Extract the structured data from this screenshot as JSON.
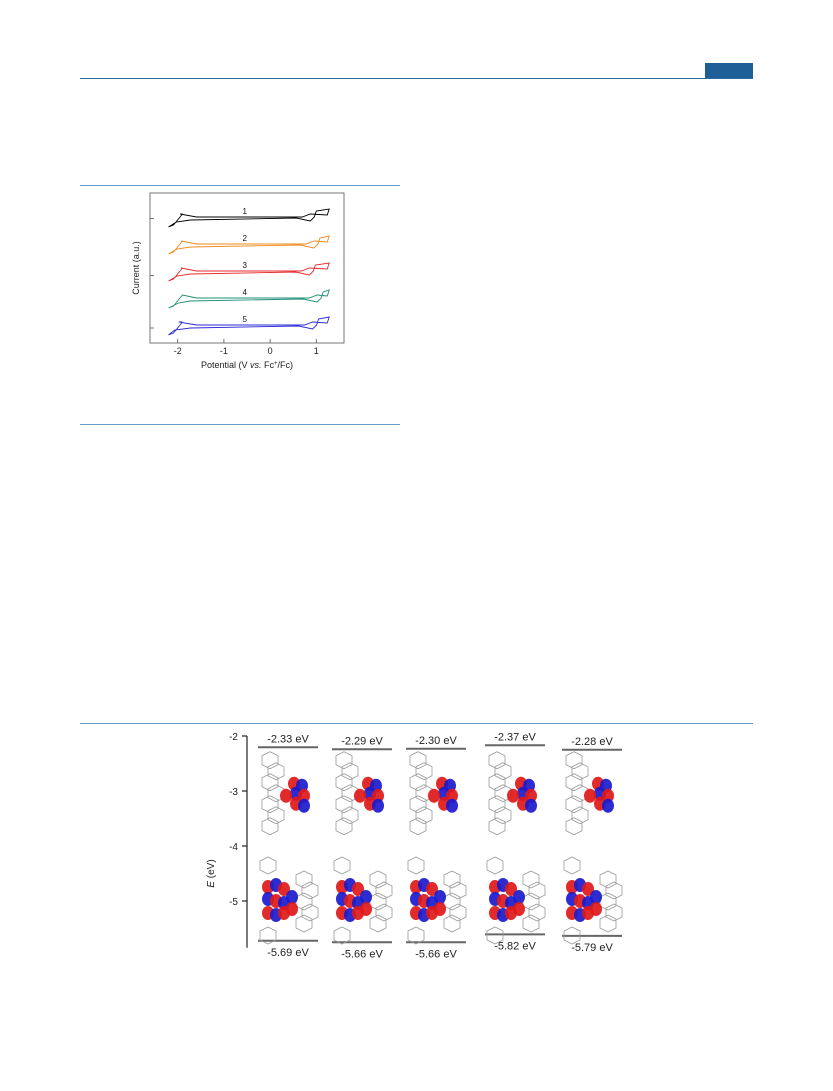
{
  "chart_data": [
    {
      "type": "line",
      "xlabel_parts": [
        "Potential (V ",
        "vs.",
        " Fc",
        "+",
        "/Fc)"
      ],
      "ylabel": "Current (a.u.)",
      "x_ticks": [
        "-2",
        "-1",
        "0",
        "1"
      ],
      "xlim": [
        -2.6,
        1.6
      ],
      "grid": false,
      "series": [
        {
          "name": "1",
          "color": "#000000",
          "offset": 4,
          "reduction": -2.12,
          "oxidation": 1.0
        },
        {
          "name": "2",
          "color": "#f08a1d",
          "offset": 3,
          "reduction": -2.1,
          "oxidation": 1.08
        },
        {
          "name": "3",
          "color": "#e8282a",
          "offset": 2,
          "reduction": -2.1,
          "oxidation": 0.98
        },
        {
          "name": "4",
          "color": "#1f8f76",
          "offset": 1,
          "reduction": -2.07,
          "oxidation": 1.15
        },
        {
          "name": "5",
          "color": "#2a2ad8",
          "offset": 0,
          "reduction": -2.15,
          "oxidation": 1.05
        }
      ]
    },
    {
      "type": "scatter",
      "ylabel_parts": [
        "E",
        " (eV)"
      ],
      "y_ticks": [
        "-2",
        "-3",
        "-4",
        "-5"
      ],
      "ylim": [
        -6,
        -2
      ],
      "lumo": {
        "values": [
          -2.33,
          -2.29,
          -2.3,
          -2.37,
          -2.28
        ],
        "labels": [
          "-2.33 eV",
          "-2.29 eV",
          "-2.30 eV",
          "-2.37 eV",
          "-2.28 eV"
        ]
      },
      "homo": {
        "values": [
          -5.69,
          -5.66,
          -5.66,
          -5.82,
          -5.79
        ],
        "labels": [
          "-5.69 eV",
          "-5.66 eV",
          "-5.66 eV",
          "-5.82 eV",
          "-5.79 eV"
        ]
      },
      "orbital_colors": {
        "positive": "#e01818",
        "negative": "#1a1acc",
        "skeleton": "#9a9a9a"
      }
    }
  ]
}
